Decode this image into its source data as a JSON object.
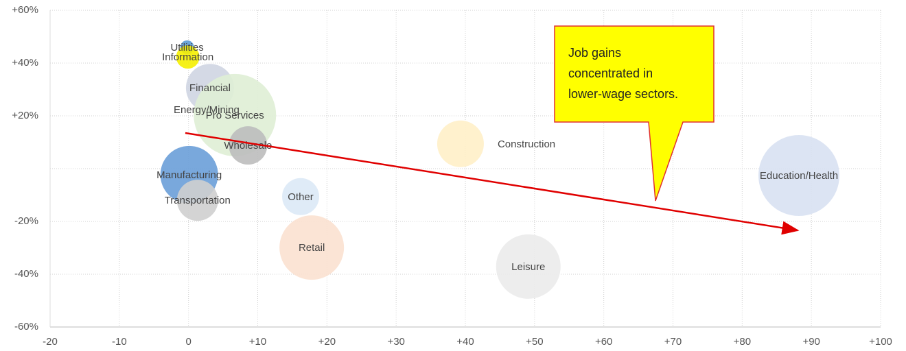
{
  "chart_data": {
    "type": "scatter",
    "series": [
      {
        "name": "Utilities",
        "color": "#5b9bd5",
        "x": -0.2,
        "y": 46,
        "size": 10
      },
      {
        "name": "Information",
        "color": "#f5f000",
        "x": -0.1,
        "y": 42.3,
        "size": 17
      },
      {
        "name": "Financial",
        "color": "#cfd5e2",
        "x": 3.1,
        "y": 30.6,
        "size": 35
      },
      {
        "name": "Energy/Mining",
        "color": "#b7b7b7",
        "x": 2.6,
        "y": 22.3,
        "size": 4
      },
      {
        "name": "Pro Services",
        "color": "#dfeed5",
        "x": 6.7,
        "y": 20.3,
        "size": 60
      },
      {
        "name": "Wholesale",
        "color": "#bdbdbd",
        "x": 8.6,
        "y": 8.8,
        "size": 28
      },
      {
        "name": "Construction",
        "color": "#fff0c8",
        "x": 39.3,
        "y": 9.4,
        "size": 34
      },
      {
        "name": "Manufacturing",
        "color": "#6a9fd8",
        "x": 0.1,
        "y": -2.3,
        "size": 42
      },
      {
        "name": "Transportation",
        "color": "#cfcfcf",
        "x": 1.3,
        "y": -12,
        "size": 30
      },
      {
        "name": "Other",
        "color": "#dce9f6",
        "x": 16.2,
        "y": -10.6,
        "size": 27
      },
      {
        "name": "Retail",
        "color": "#fbe1d0",
        "x": 17.8,
        "y": -29.9,
        "size": 47
      },
      {
        "name": "Leisure",
        "color": "#ebebeb",
        "x": 49.1,
        "y": -37.1,
        "size": 47
      },
      {
        "name": "Education/Health",
        "color": "#d8e1f2",
        "x": 88.2,
        "y": -2.6,
        "size": 59
      }
    ],
    "label_position": [
      "center",
      "center",
      "center",
      "center",
      "center",
      "center",
      "right",
      "center",
      "center",
      "center",
      "center",
      "center",
      "center"
    ],
    "xlim": [
      -20,
      100
    ],
    "xticks": [
      -20,
      -10,
      0,
      {
        "value": 10,
        "label": "+10"
      },
      {
        "value": 20,
        "label": "+20"
      },
      {
        "value": 30,
        "label": "+30"
      },
      {
        "value": 40,
        "label": "+40"
      },
      {
        "value": 50,
        "label": "+50"
      },
      {
        "value": 60,
        "label": "+60"
      },
      {
        "value": 70,
        "label": "+70"
      },
      {
        "value": 80,
        "label": "+80"
      },
      {
        "value": 90,
        "label": "+90"
      },
      {
        "value": 100,
        "label": "+100"
      }
    ],
    "ylim": [
      -60,
      60
    ],
    "yticks": [
      {
        "value": -60,
        "label": "-60%"
      },
      {
        "value": -40,
        "label": "-40%"
      },
      {
        "value": -20,
        "label": "-20%"
      },
      {
        "value": 0,
        "label": null
      },
      {
        "value": 20,
        "label": "+20%"
      },
      {
        "value": 40,
        "label": "+40%"
      },
      {
        "value": 60,
        "label": "+60%"
      }
    ],
    "grid": true,
    "annotation": [
      "Job gains",
      "concentrated in",
      "lower-wage sectors."
    ]
  }
}
